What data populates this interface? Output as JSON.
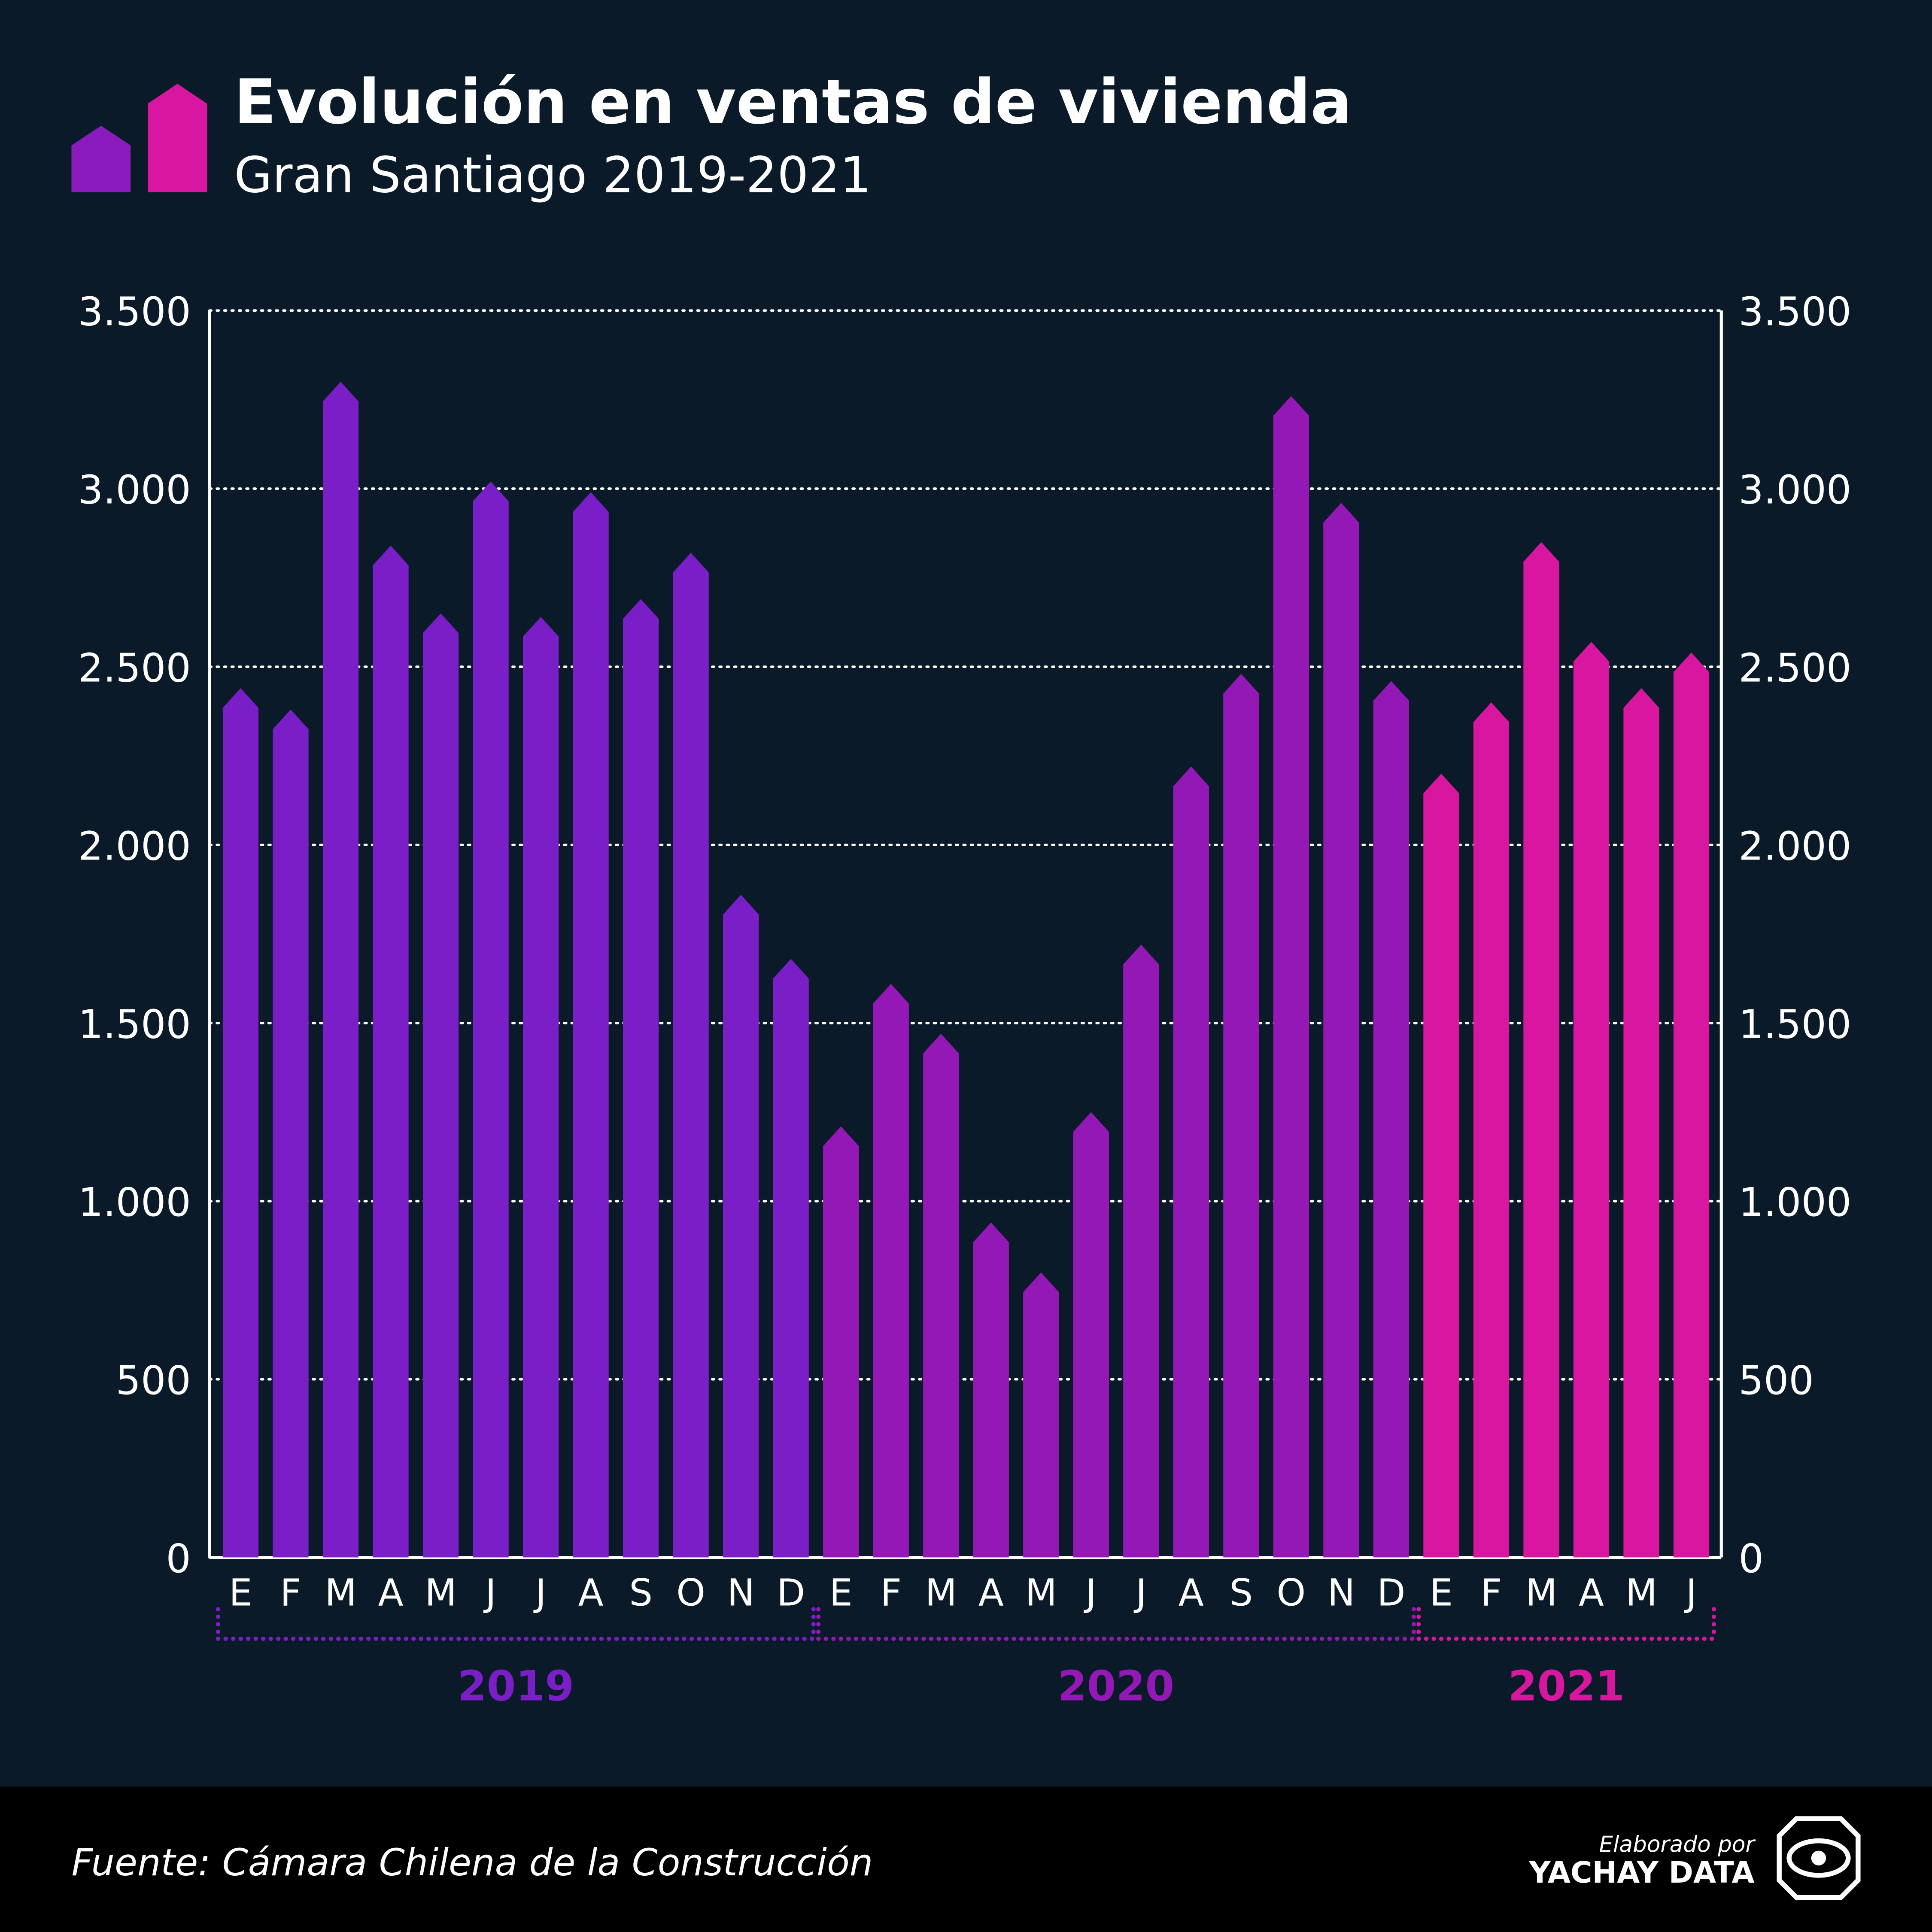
{
  "header": {
    "title": "Evolución en ventas de vivienda",
    "subtitle": "Gran Santiago 2019-2021"
  },
  "footer": {
    "source": "Fuente: Cámara Chilena de la Construcción",
    "credit": "Elaborado por",
    "brand": "YACHAY DATA"
  },
  "chart_data": {
    "type": "bar",
    "ylim": [
      0,
      3500
    ],
    "yticks": [
      0,
      500,
      {
        "value": 1000,
        "label": "1.000"
      },
      {
        "value": 1500,
        "label": "1.500"
      },
      {
        "value": 2000,
        "label": "2.000"
      },
      {
        "value": 2500,
        "label": "2.500"
      },
      {
        "value": 3000,
        "label": "3.000"
      },
      {
        "value": 3500,
        "label": "3.500"
      }
    ],
    "y2lim": [
      0,
      3500
    ],
    "y2ticks": [
      0,
      500,
      {
        "value": 1000,
        "label": "1.000"
      },
      {
        "value": 1500,
        "label": "1.500"
      },
      {
        "value": 2000,
        "label": "2.000"
      },
      {
        "value": 2500,
        "label": "2.500"
      },
      {
        "value": 3000,
        "label": "3.000"
      },
      {
        "value": 3500,
        "label": "3.500"
      }
    ],
    "grid": true,
    "groups": [
      {
        "name": "2019",
        "color": "#7a1fc8",
        "categories": [
          "E",
          "F",
          "M",
          "A",
          "M",
          "J",
          "J",
          "A",
          "S",
          "O",
          "N",
          "D"
        ],
        "values": [
          2440,
          2380,
          3300,
          2840,
          2650,
          3020,
          2640,
          2990,
          2690,
          2820,
          1860,
          1680
        ]
      },
      {
        "name": "2020",
        "color": "#9418b6",
        "categories": [
          "E",
          "F",
          "M",
          "A",
          "M",
          "J",
          "J",
          "A",
          "S",
          "O",
          "N",
          "D"
        ],
        "values": [
          1210,
          1610,
          1470,
          940,
          800,
          1250,
          1720,
          2220,
          2480,
          3260,
          2960,
          2460
        ]
      },
      {
        "name": "2021",
        "color": "#d8169f",
        "categories": [
          "E",
          "F",
          "M",
          "A",
          "M",
          "J"
        ],
        "values": [
          2200,
          2400,
          2850,
          2570,
          2440,
          2540
        ]
      }
    ]
  }
}
